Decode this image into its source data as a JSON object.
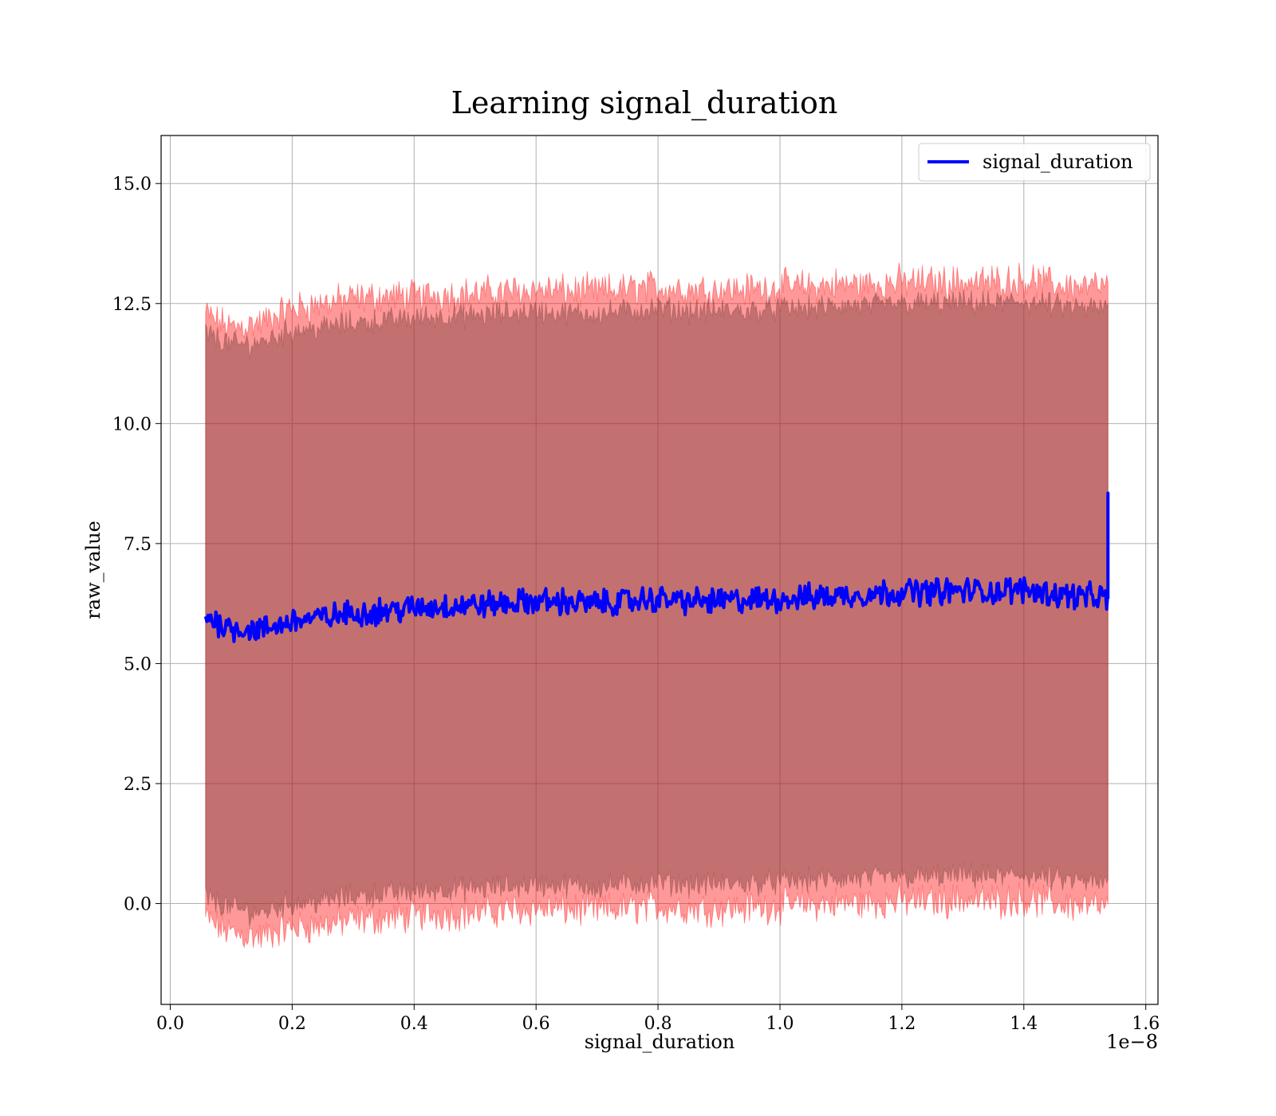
{
  "chart_data": {
    "type": "line",
    "title": "Learning signal_duration",
    "xlabel": "signal_duration",
    "ylabel": "raw_value",
    "x_offset_text": "1e−8",
    "xlim": [
      -1.5e-10,
      1.62e-08
    ],
    "ylim": [
      -2.1,
      16.0
    ],
    "x_ticks": [
      0.0,
      2e-09,
      4e-09,
      6e-09,
      8e-09,
      1e-08,
      1.2e-08,
      1.4e-08,
      1.6e-08
    ],
    "x_tick_labels": [
      "0.0",
      "0.2",
      "0.4",
      "0.6",
      "0.8",
      "1.0",
      "1.2",
      "1.4",
      "1.6"
    ],
    "y_ticks": [
      0.0,
      2.5,
      5.0,
      7.5,
      10.0,
      12.5,
      15.0
    ],
    "y_tick_labels": [
      "0.0",
      "2.5",
      "5.0",
      "7.5",
      "10.0",
      "12.5",
      "15.0"
    ],
    "grid": true,
    "legend_position": "top-right",
    "series": [
      {
        "name": "signal_duration",
        "color": "#0000ff",
        "x": [
          5.8e-10,
          8e-10,
          1e-09,
          1.2e-09,
          1.5e-09,
          1.8e-09,
          2e-09,
          2.5e-09,
          3e-09,
          3.5e-09,
          4e-09,
          4.5e-09,
          5e-09,
          5.5e-09,
          6e-09,
          6.5e-09,
          7e-09,
          7.5e-09,
          8e-09,
          8.5e-09,
          9e-09,
          9.5e-09,
          1e-08,
          1.05e-08,
          1.1e-08,
          1.15e-08,
          1.2e-08,
          1.25e-08,
          1.3e-08,
          1.35e-08,
          1.4e-08,
          1.45e-08,
          1.5e-08,
          1.538e-08
        ],
        "y": [
          6.0,
          5.85,
          5.75,
          5.72,
          5.7,
          5.8,
          5.9,
          5.95,
          6.05,
          6.1,
          6.15,
          6.2,
          6.22,
          6.25,
          6.3,
          6.28,
          6.25,
          6.3,
          6.35,
          6.3,
          6.3,
          6.32,
          6.35,
          6.38,
          6.42,
          6.45,
          6.5,
          6.5,
          6.52,
          6.5,
          6.55,
          6.45,
          6.4,
          6.35
        ],
        "final_spike": 8.55
      }
    ],
    "bands": [
      {
        "role": "outer",
        "color": "#ff0000",
        "alpha": 0.4,
        "upper": [
          12.3,
          12.1,
          12.0,
          12.05,
          12.1,
          12.3,
          12.4,
          12.5,
          12.6,
          12.65,
          12.65,
          12.7,
          12.7,
          12.75,
          12.8,
          12.75,
          12.75,
          12.8,
          12.85,
          12.8,
          12.8,
          12.8,
          12.85,
          12.85,
          12.9,
          12.9,
          12.95,
          12.95,
          12.95,
          12.95,
          13.0,
          12.9,
          12.85,
          12.85
        ],
        "lower": [
          -0.3,
          -0.5,
          -0.6,
          -0.65,
          -0.7,
          -0.55,
          -0.5,
          -0.45,
          -0.35,
          -0.3,
          -0.25,
          -0.2,
          -0.2,
          -0.15,
          -0.1,
          -0.12,
          -0.15,
          -0.1,
          -0.05,
          -0.1,
          -0.1,
          -0.08,
          -0.05,
          -0.02,
          0.0,
          0.02,
          0.05,
          0.05,
          0.08,
          0.05,
          0.1,
          0.0,
          -0.05,
          -0.1
        ]
      },
      {
        "role": "middle",
        "color": "#7b3f3f",
        "alpha": 0.45,
        "upper": [
          11.9,
          11.75,
          11.65,
          11.65,
          11.7,
          11.85,
          11.95,
          12.0,
          12.1,
          12.15,
          12.2,
          12.25,
          12.25,
          12.3,
          12.35,
          12.3,
          12.3,
          12.35,
          12.4,
          12.35,
          12.35,
          12.35,
          12.4,
          12.4,
          12.45,
          12.45,
          12.5,
          12.5,
          12.5,
          12.5,
          12.55,
          12.45,
          12.4,
          12.4
        ],
        "lower": [
          0.15,
          0.0,
          -0.1,
          -0.15,
          -0.2,
          -0.05,
          0.0,
          0.05,
          0.15,
          0.2,
          0.25,
          0.3,
          0.3,
          0.35,
          0.4,
          0.38,
          0.35,
          0.4,
          0.45,
          0.4,
          0.4,
          0.42,
          0.45,
          0.48,
          0.5,
          0.52,
          0.55,
          0.55,
          0.58,
          0.55,
          0.6,
          0.5,
          0.45,
          0.4
        ]
      }
    ]
  }
}
